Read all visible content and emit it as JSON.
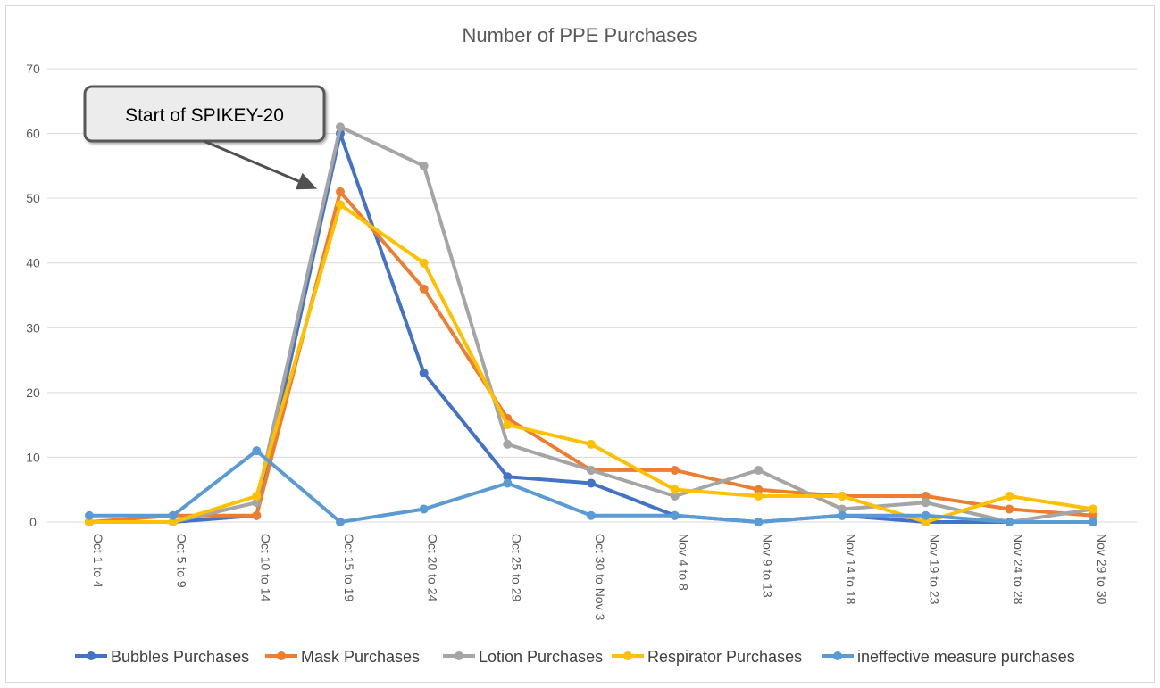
{
  "chart_data": {
    "type": "line",
    "title": "Number of PPE Purchases",
    "xlabel": "",
    "ylabel": "",
    "ylim": [
      0,
      70
    ],
    "yticks": [
      0,
      10,
      20,
      30,
      40,
      50,
      60,
      70
    ],
    "grid": "horizontal",
    "legend": "bottom",
    "categories": [
      "Oct 1 to 4",
      "Oct 5 to 9",
      "Oct 10 to 14",
      "Oct 15 to 19",
      "Oct 20 to 24",
      "Oct 25 to 29",
      "Oct 30 to Nov 3",
      "Nov 4 to 8",
      "Nov 9 to 13",
      "Nov 14 to 18",
      "Nov 19 to 23",
      "Nov 24 to 28",
      "Nov 29 to 30"
    ],
    "series": [
      {
        "name": "Bubbles Purchases",
        "color": "#4472c4",
        "values": [
          0,
          0,
          1,
          60,
          23,
          7,
          6,
          1,
          0,
          1,
          0,
          0,
          0
        ]
      },
      {
        "name": "Mask Purchases",
        "color": "#ed7d31",
        "values": [
          0,
          1,
          1,
          51,
          36,
          16,
          8,
          8,
          5,
          4,
          4,
          2,
          1
        ]
      },
      {
        "name": "Lotion Purchases",
        "color": "#a5a5a5",
        "values": [
          0,
          0,
          3,
          61,
          55,
          12,
          8,
          4,
          8,
          2,
          3,
          0,
          2
        ]
      },
      {
        "name": "Respirator Purchases",
        "color": "#ffc000",
        "values": [
          0,
          0,
          4,
          49,
          40,
          15,
          12,
          5,
          4,
          4,
          0,
          4,
          2
        ]
      },
      {
        "name": "ineffective measure purchases",
        "color": "#5b9bd5",
        "values": [
          1,
          1,
          11,
          0,
          2,
          6,
          1,
          1,
          0,
          1,
          1,
          0,
          0
        ]
      }
    ],
    "annotation": {
      "text": "Start of SPIKEY-20",
      "points_to_category": "Oct 15 to 19",
      "points_to_value": 52
    }
  }
}
